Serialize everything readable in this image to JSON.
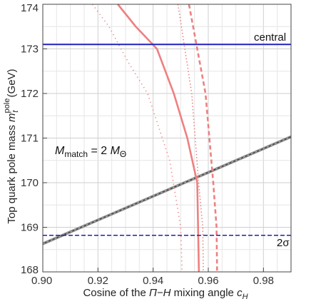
{
  "chart_data": {
    "type": "line",
    "xlabel_main": "Cosine of the ",
    "xlabel_symbol": "Π−H",
    "xlabel_rest": " mixing angle  ",
    "xlabel_var": "c",
    "xlabel_sub": "H",
    "ylabel_main": "Top quark pole mass  ",
    "ylabel_var": "m",
    "ylabel_sub": "t",
    "ylabel_sup": "pole",
    "ylabel_unit": " (GeV)",
    "xlim": [
      0.9,
      0.99
    ],
    "ylim": [
      168,
      174
    ],
    "x_ticks": [
      0.9,
      0.92,
      0.94,
      0.96,
      0.98
    ],
    "x_tick_labels": [
      "0.90",
      "0.92",
      "0.94",
      "0.96",
      "0.98"
    ],
    "y_ticks": [
      168,
      169,
      170,
      171,
      172,
      173,
      174
    ],
    "y_tick_labels": [
      "168",
      "169",
      "170",
      "171",
      "172",
      "173",
      "174"
    ],
    "grid": true,
    "annotations": {
      "central": "central",
      "two_sigma": "2σ",
      "match_M": "M",
      "match_sub": "match",
      "match_eq": " = 2 ",
      "match_M2": "M",
      "match_sub2": "Θ"
    },
    "series": [
      {
        "style": "solid-gray",
        "color": "#555555",
        "x": [
          0.9,
          0.99
        ],
        "y": [
          168.63,
          171.03
        ]
      },
      {
        "style": "solid-red",
        "color": "#ee8080",
        "x": [
          0.9272,
          0.9337,
          0.9414,
          0.9475,
          0.9524,
          0.956,
          0.9566
        ],
        "y": [
          174.0,
          173.5,
          173.0,
          172.0,
          171.0,
          170.0,
          168.0
        ]
      },
      {
        "style": "dotted-red",
        "color": "#ee8080",
        "x": [
          0.918,
          0.924,
          0.931,
          0.938,
          0.946,
          0.95,
          0.9505
        ],
        "y": [
          174.0,
          173.5,
          172.7,
          172.0,
          170.5,
          169.0,
          168.0
        ]
      },
      {
        "style": "dashed-red",
        "color": "#ee8080",
        "x": [
          0.953,
          0.959,
          0.9618,
          0.963,
          0.9632
        ],
        "y": [
          174.0,
          172.0,
          170.0,
          169.0,
          168.0
        ]
      },
      {
        "style": "dashdot-red",
        "color": "#ee8080",
        "x": [
          0.949,
          0.954,
          0.9565,
          0.958,
          0.9582
        ],
        "y": [
          174.0,
          172.0,
          170.0,
          169.0,
          168.0
        ]
      }
    ],
    "hlines": [
      {
        "name": "central",
        "y": 173.1,
        "color": "#2020c0",
        "style": "solid"
      },
      {
        "name": "2σ",
        "y": 168.82,
        "color": "#2020a0",
        "style": "dashed"
      }
    ]
  }
}
